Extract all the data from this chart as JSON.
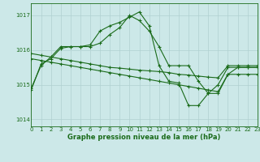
{
  "background_color": "#cce8e8",
  "grid_color": "#b0d0d0",
  "line_color": "#1a6b1a",
  "title": "Graphe pression niveau de la mer (hPa)",
  "xlim": [
    0,
    23
  ],
  "ylim": [
    1013.8,
    1017.35
  ],
  "yticks": [
    1014,
    1015,
    1016,
    1017
  ],
  "xticks": [
    0,
    1,
    2,
    3,
    4,
    5,
    6,
    7,
    8,
    9,
    10,
    11,
    12,
    13,
    14,
    15,
    16,
    17,
    18,
    19,
    20,
    21,
    22,
    23
  ],
  "series": [
    {
      "x": [
        0,
        1,
        2,
        3,
        4,
        5,
        6,
        7,
        8,
        9,
        10,
        11,
        12,
        13,
        14,
        15,
        16,
        17,
        18,
        19,
        20,
        21,
        22,
        23
      ],
      "y": [
        1014.85,
        1015.6,
        1015.75,
        1016.05,
        1016.1,
        1016.1,
        1016.15,
        1016.55,
        1016.7,
        1016.8,
        1016.95,
        1017.1,
        1016.7,
        1015.55,
        1015.1,
        1015.05,
        1014.4,
        1014.4,
        1014.75,
        1014.75,
        1015.3,
        1015.5,
        1015.5,
        1015.5
      ]
    },
    {
      "x": [
        0,
        1,
        2,
        3,
        4,
        5,
        6,
        7,
        8,
        9,
        10,
        11,
        12,
        13,
        14,
        15,
        16,
        17,
        18,
        19,
        20,
        21,
        22,
        23
      ],
      "y": [
        1014.9,
        1015.55,
        1015.8,
        1016.1,
        1016.1,
        1016.1,
        1016.1,
        1016.2,
        1016.45,
        1016.65,
        1017.0,
        1016.85,
        1016.55,
        1016.1,
        1015.55,
        1015.55,
        1015.55,
        1015.1,
        1014.75,
        1015.0,
        1015.5,
        1015.5,
        1015.5,
        1015.5
      ]
    },
    {
      "x": [
        0,
        1,
        2,
        3,
        4,
        5,
        6,
        7,
        8,
        9,
        10,
        11,
        12,
        13,
        14,
        15,
        16,
        17,
        18,
        19,
        20,
        21,
        22,
        23
      ],
      "y": [
        1015.9,
        1015.85,
        1015.8,
        1015.75,
        1015.7,
        1015.65,
        1015.6,
        1015.55,
        1015.5,
        1015.48,
        1015.45,
        1015.42,
        1015.4,
        1015.38,
        1015.35,
        1015.3,
        1015.28,
        1015.25,
        1015.22,
        1015.2,
        1015.55,
        1015.55,
        1015.55,
        1015.55
      ]
    },
    {
      "x": [
        0,
        1,
        2,
        3,
        4,
        5,
        6,
        7,
        8,
        9,
        10,
        11,
        12,
        13,
        14,
        15,
        16,
        17,
        18,
        19,
        20,
        21,
        22,
        23
      ],
      "y": [
        1015.75,
        1015.7,
        1015.65,
        1015.6,
        1015.55,
        1015.5,
        1015.45,
        1015.4,
        1015.35,
        1015.3,
        1015.25,
        1015.2,
        1015.15,
        1015.1,
        1015.05,
        1015.0,
        1014.95,
        1014.9,
        1014.85,
        1014.8,
        1015.3,
        1015.3,
        1015.3,
        1015.3
      ]
    }
  ]
}
